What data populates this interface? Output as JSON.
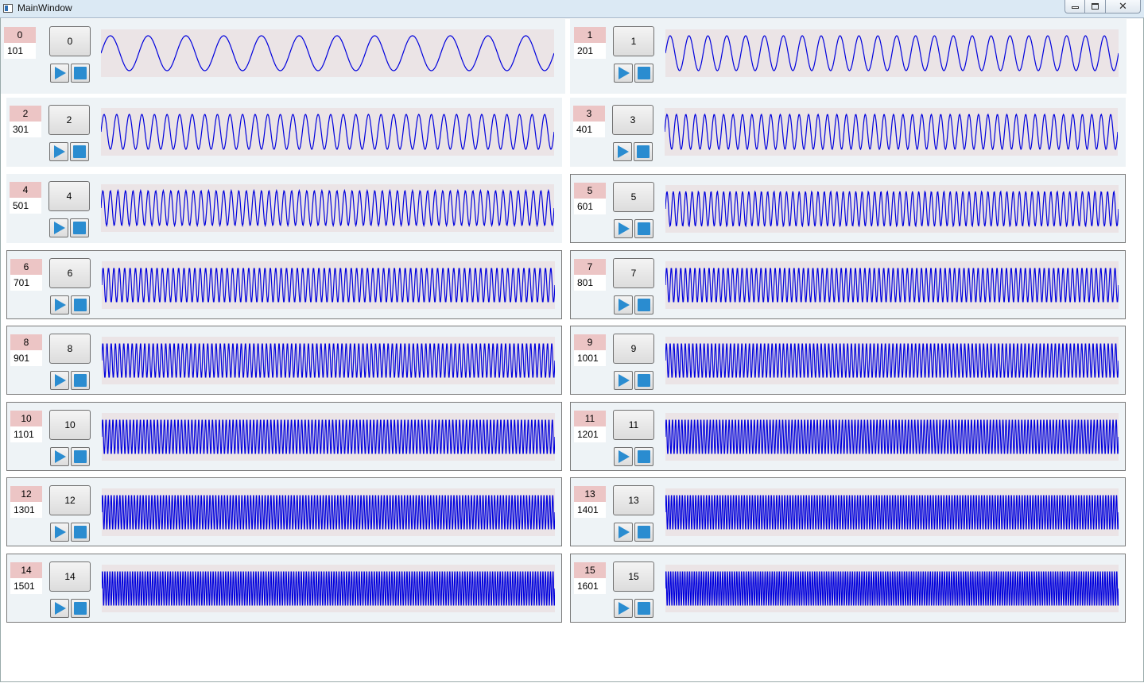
{
  "window": {
    "title": "MainWindow",
    "close_glyph": "✕"
  },
  "colors": {
    "label_bg": "#ecc5c5",
    "panel_bg": "#eef3f6",
    "wave_bg": "#ebe4e6",
    "wave_stroke": "#0000dd",
    "accent": "#2a8cd0"
  },
  "channels": [
    {
      "id": "0",
      "value": "101",
      "button": "0",
      "cycles": 12
    },
    {
      "id": "1",
      "value": "201",
      "button": "1",
      "cycles": 24
    },
    {
      "id": "2",
      "value": "301",
      "button": "2",
      "cycles": 36
    },
    {
      "id": "3",
      "value": "401",
      "button": "3",
      "cycles": 48
    },
    {
      "id": "4",
      "value": "501",
      "button": "4",
      "cycles": 60
    },
    {
      "id": "5",
      "value": "601",
      "button": "5",
      "cycles": 72
    },
    {
      "id": "6",
      "value": "701",
      "button": "6",
      "cycles": 84
    },
    {
      "id": "7",
      "value": "801",
      "button": "7",
      "cycles": 96
    },
    {
      "id": "8",
      "value": "901",
      "button": "8",
      "cycles": 108
    },
    {
      "id": "9",
      "value": "1001",
      "button": "9",
      "cycles": 120
    },
    {
      "id": "10",
      "value": "1101",
      "button": "10",
      "cycles": 132
    },
    {
      "id": "11",
      "value": "1201",
      "button": "11",
      "cycles": 144
    },
    {
      "id": "12",
      "value": "1301",
      "button": "12",
      "cycles": 156
    },
    {
      "id": "13",
      "value": "1401",
      "button": "13",
      "cycles": 168
    },
    {
      "id": "14",
      "value": "1501",
      "button": "14",
      "cycles": 180
    },
    {
      "id": "15",
      "value": "1601",
      "button": "15",
      "cycles": 192
    }
  ]
}
